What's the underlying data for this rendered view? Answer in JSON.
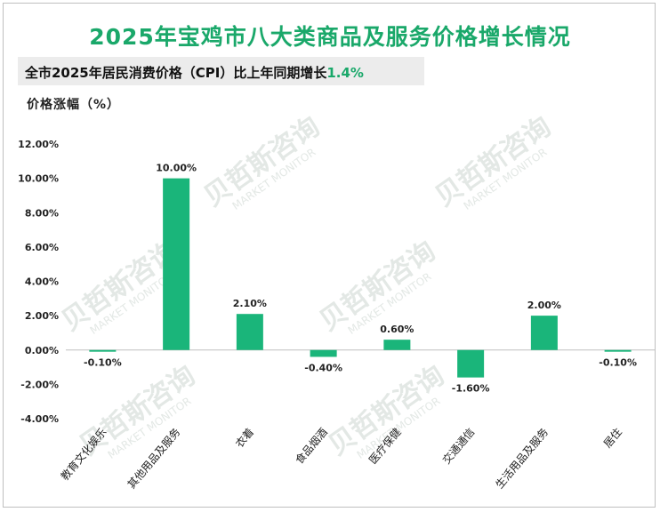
{
  "title": "2025年宝鸡市八大类商品及服务价格增长情况",
  "subtitle": {
    "text": "全市2025年居民消费价格（CPI）比上年同期增长",
    "highlight": "1.4%"
  },
  "watermark": {
    "cn": "贝哲斯咨询",
    "en": "MARKET MONITOR"
  },
  "colors": {
    "bar": "#1ab57a",
    "accent": "#1aa86a",
    "axis": "#bfbfbf",
    "text": "#222222",
    "watermark": "#e3e8e5"
  },
  "chart_data": {
    "type": "bar",
    "title": "2025年宝鸡市八大类商品及服务价格增长情况",
    "ylabel": "价格涨幅（%）",
    "xlabel": "",
    "ylim": [
      -4,
      12
    ],
    "yticks": [
      12,
      10,
      8,
      6,
      4,
      2,
      0,
      -2,
      -4
    ],
    "ytick_labels": [
      "12.00%",
      "10.00%",
      "8.00%",
      "6.00%",
      "4.00%",
      "2.00%",
      "0.00%",
      "-2.00%",
      "-4.00%"
    ],
    "categories": [
      "教育文化娱乐",
      "其他用品及服务",
      "衣着",
      "食品烟酒",
      "医疗保健",
      "交通通信",
      "生活用品及服务",
      "居住"
    ],
    "values": [
      -0.1,
      10.0,
      2.1,
      -0.4,
      0.6,
      -1.6,
      2.0,
      -0.1
    ],
    "data_labels": [
      "-0.10%",
      "10.00%",
      "2.10%",
      "-0.40%",
      "0.60%",
      "-1.60%",
      "2.00%",
      "-0.10%"
    ]
  }
}
